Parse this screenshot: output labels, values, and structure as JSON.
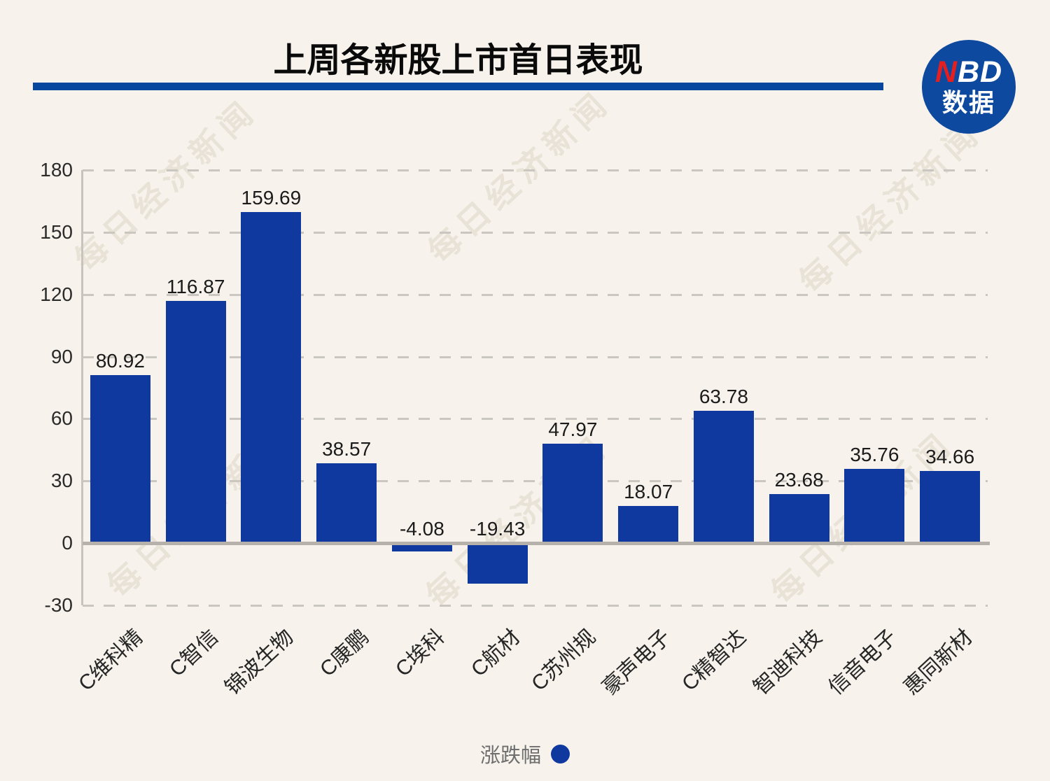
{
  "logo": {
    "nbd_red": "N",
    "nbd_rest": "BD",
    "caption": "数据"
  },
  "watermark": {
    "text": "每日经济新闻"
  },
  "colors": {
    "background": "#f7f3ec",
    "bar": "#10399f",
    "title_text": "#0a0a0a",
    "underline": "#08479e",
    "logo_bg": "#0d4a9f",
    "logo_red": "#e3201f",
    "logo_text": "#ffffff",
    "axis_text": "#2b2b2b",
    "value_text": "#1b1b1b",
    "category_text": "#262626",
    "legend_text": "#6e6e6e",
    "gridline": "#cac7c0",
    "zero_line": "#b6b2ab",
    "axis_line": "#c7c4bd",
    "watermark": "#e8e2d7"
  },
  "chart_data": {
    "type": "bar",
    "title": "上周各新股上市首日表现",
    "series_name": "涨跌幅",
    "categories": [
      "C维科精",
      "C智信",
      "锦波生物",
      "C康鹏",
      "C埃科",
      "C航材",
      "C苏州规",
      "豪声电子",
      "C精智达",
      "智迪科技",
      "信音电子",
      "惠同新材"
    ],
    "values": [
      80.92,
      116.87,
      159.69,
      38.57,
      -4.08,
      -19.43,
      47.97,
      18.07,
      63.78,
      23.68,
      35.76,
      34.66
    ],
    "value_label_decimals": 2,
    "ylim": [
      -30,
      180
    ],
    "yticks": [
      180,
      150,
      120,
      90,
      60,
      30,
      0,
      -30
    ],
    "grid": "horizontal-dashed",
    "legend_position": "bottom-center",
    "category_label_rotation_deg": -43
  }
}
